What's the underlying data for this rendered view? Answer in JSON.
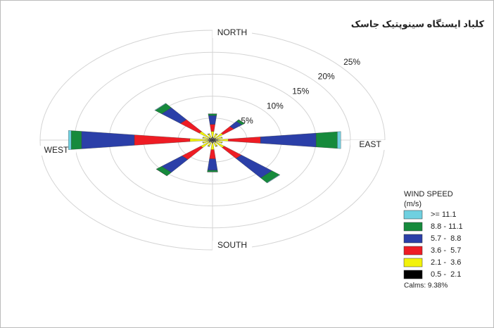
{
  "chart_data": {
    "type": "windrose",
    "title": "کلباد ایستگاه سینوپتیک جاسک",
    "categories": [
      "NORTH",
      null,
      null,
      null,
      "EAST",
      null,
      null,
      null,
      "SOUTH",
      null,
      null,
      null,
      "WEST",
      null,
      null,
      null
    ],
    "rlim": [
      0,
      25
    ],
    "rticks": [
      {
        "value": 5,
        "label": "5%"
      },
      {
        "value": 10,
        "label": "10%"
      },
      {
        "value": 15,
        "label": "15%"
      },
      {
        "value": 20,
        "label": "20%"
      },
      {
        "value": 25,
        "label": "25%"
      }
    ],
    "legend_title": "WIND SPEED",
    "legend_unit": "(m/s)",
    "calms": "Calms: 9.38%",
    "legend_position": "lower right",
    "series": [
      {
        "name": "0.5 -  2.1",
        "color": "#000000",
        "values": [
          0.7,
          0.5,
          0.6,
          0.5,
          0.8,
          0.5,
          0.7,
          0.5,
          0.7,
          0.5,
          0.7,
          0.5,
          0.7,
          0.5,
          0.7,
          0.5
        ]
      },
      {
        "name": "2.1 -  3.6",
        "color": "#f2f20a",
        "values": [
          1.3,
          1,
          1.4,
          1,
          1.5,
          1,
          1.5,
          1,
          1.5,
          1,
          1.5,
          1,
          2.6,
          1,
          1.8,
          1
        ]
      },
      {
        "name": "3.6 -  5.7",
        "color": "#ee1c24",
        "values": [
          1.6,
          0,
          2,
          0,
          4.7,
          0,
          3.2,
          0,
          2.1,
          0,
          3.5,
          0,
          8.1,
          0,
          3.5,
          0
        ]
      },
      {
        "name": "5.7 -  8.8",
        "color": "#2b3fa8",
        "values": [
          2.0,
          0,
          1.5,
          0,
          8.1,
          0,
          5.7,
          0,
          2.6,
          0,
          3.8,
          0,
          7.7,
          0,
          3.5,
          0
        ]
      },
      {
        "name": "8.8 - 11.1",
        "color": "#168a3c",
        "values": [
          0.4,
          0,
          0.5,
          0,
          3.1,
          0,
          1.4,
          0,
          0.4,
          0,
          1,
          0,
          1.5,
          0,
          1.2,
          0
        ]
      },
      {
        "name": ">= 11.1",
        "color": "#6fd0e0",
        "values": [
          0,
          0,
          0,
          0,
          0.5,
          0,
          0.1,
          0,
          0,
          0,
          0,
          0,
          0.4,
          0,
          0.1,
          0
        ]
      }
    ]
  }
}
